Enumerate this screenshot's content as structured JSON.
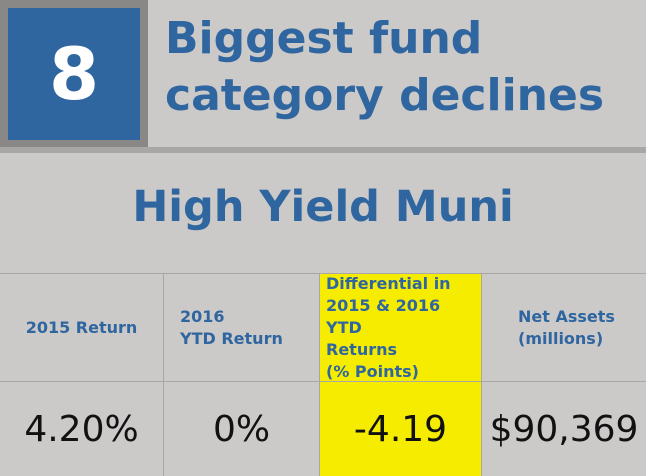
{
  "rank": "8",
  "title_lines": [
    "Biggest fund",
    "category declines"
  ],
  "subtitle": "High Yield Muni",
  "table": {
    "headers": [
      "2015 Return",
      "2016\nYTD Return",
      "Differential in\n2015 & 2016 YTD\nReturns\n(% Points)",
      "Net Assets\n(millions)"
    ],
    "values": [
      "4.20%",
      "0%",
      "-4.19",
      "$90,369"
    ]
  },
  "colors": {
    "accent_blue": "#2f66a0",
    "highlight_yellow": "#f5ec00",
    "background_gray": "#ccc9c9"
  }
}
